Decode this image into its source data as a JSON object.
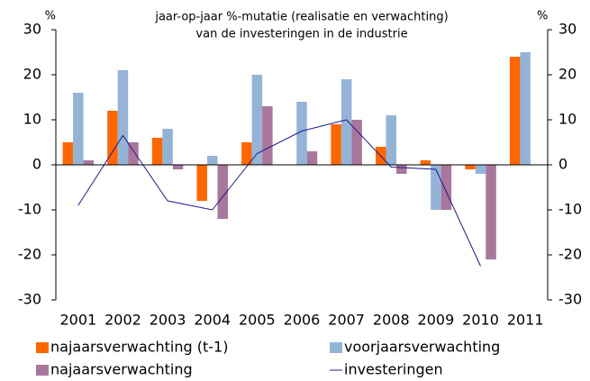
{
  "chart_data": {
    "type": "bar",
    "title_lines": [
      "jaar-op-jaar %-mutatie (realisatie en verwachting)",
      "van de investeringen in de industrie"
    ],
    "ylabel": "%",
    "y2label": "%",
    "categories": [
      "2001",
      "2002",
      "2003",
      "2004",
      "2005",
      "2006",
      "2007",
      "2008",
      "2009",
      "2010",
      "2011"
    ],
    "series": [
      {
        "name": "najaarsverwachting (t-1)",
        "color": "#ff6600",
        "type": "bar",
        "values": [
          5,
          12,
          6,
          -8,
          5,
          0,
          9,
          4,
          1,
          -1,
          24
        ]
      },
      {
        "name": "voorjaarsverwachting",
        "color": "#95b3d7",
        "type": "bar",
        "values": [
          16,
          21,
          8,
          2,
          20,
          14,
          19,
          11,
          -10,
          -2,
          25
        ]
      },
      {
        "name": "najaarsverwachting",
        "color": "#a8779b",
        "type": "bar",
        "values": [
          1,
          5,
          -1,
          -12,
          13,
          3,
          10,
          -2,
          -10,
          -21,
          null
        ]
      },
      {
        "name": "investeringen",
        "color": "#1a1a8c",
        "type": "line",
        "axis": "y2",
        "values": [
          -9,
          6.5,
          -8,
          -10,
          2.5,
          7.5,
          10,
          -0.5,
          -1,
          -22.5,
          null
        ]
      }
    ],
    "ylim": [
      -30,
      30
    ],
    "yticks": [
      -30,
      -20,
      -10,
      0,
      10,
      20,
      30
    ],
    "y2lim": [
      -30,
      30
    ],
    "y2ticks": [
      -30,
      -20,
      -10,
      0,
      10,
      20,
      30
    ],
    "legend": "bottom"
  }
}
